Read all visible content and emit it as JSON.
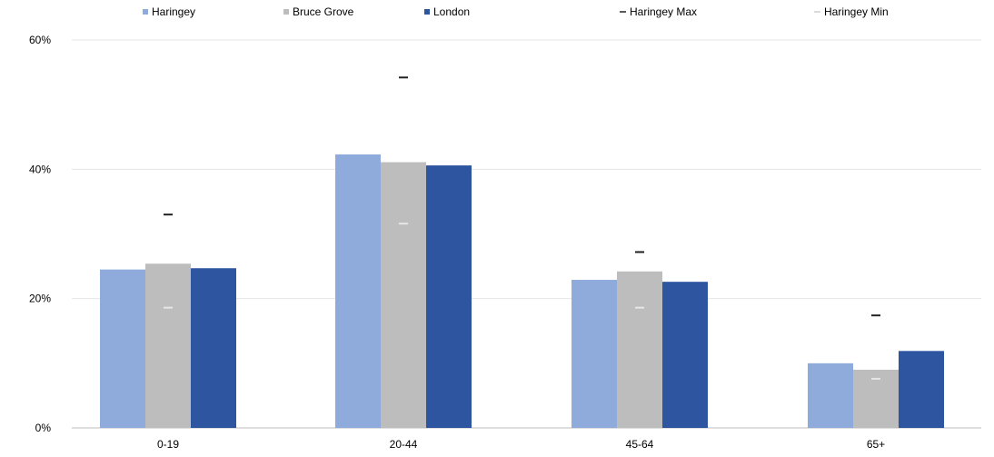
{
  "chart_data": {
    "type": "bar",
    "title": "",
    "xlabel": "",
    "ylabel": "",
    "categories": [
      "0-19",
      "20-44",
      "45-64",
      "65+"
    ],
    "ylim": [
      0,
      60
    ],
    "yticks": [
      0,
      20,
      40,
      60
    ],
    "ytick_labels": [
      "0%",
      "20%",
      "40%",
      "60%"
    ],
    "grid": true,
    "legend_position": "top",
    "series": [
      {
        "name": "Haringey",
        "values": [
          24.5,
          42.3,
          22.9,
          10.0
        ],
        "color": "#8fabdc"
      },
      {
        "name": "Bruce Grove",
        "values": [
          25.4,
          41.1,
          24.2,
          9.0
        ],
        "color": "#bdbdbd"
      },
      {
        "name": "London",
        "values": [
          24.7,
          40.6,
          22.6,
          11.9
        ],
        "color": "#2e56a0"
      }
    ],
    "markers": [
      {
        "name": "Haringey Max",
        "values": [
          33.0,
          54.2,
          27.2,
          17.4
        ],
        "color": "#222222"
      },
      {
        "name": "Haringey Min",
        "values": [
          18.6,
          31.6,
          18.6,
          7.6
        ],
        "color": "#e6e6e6"
      }
    ]
  }
}
